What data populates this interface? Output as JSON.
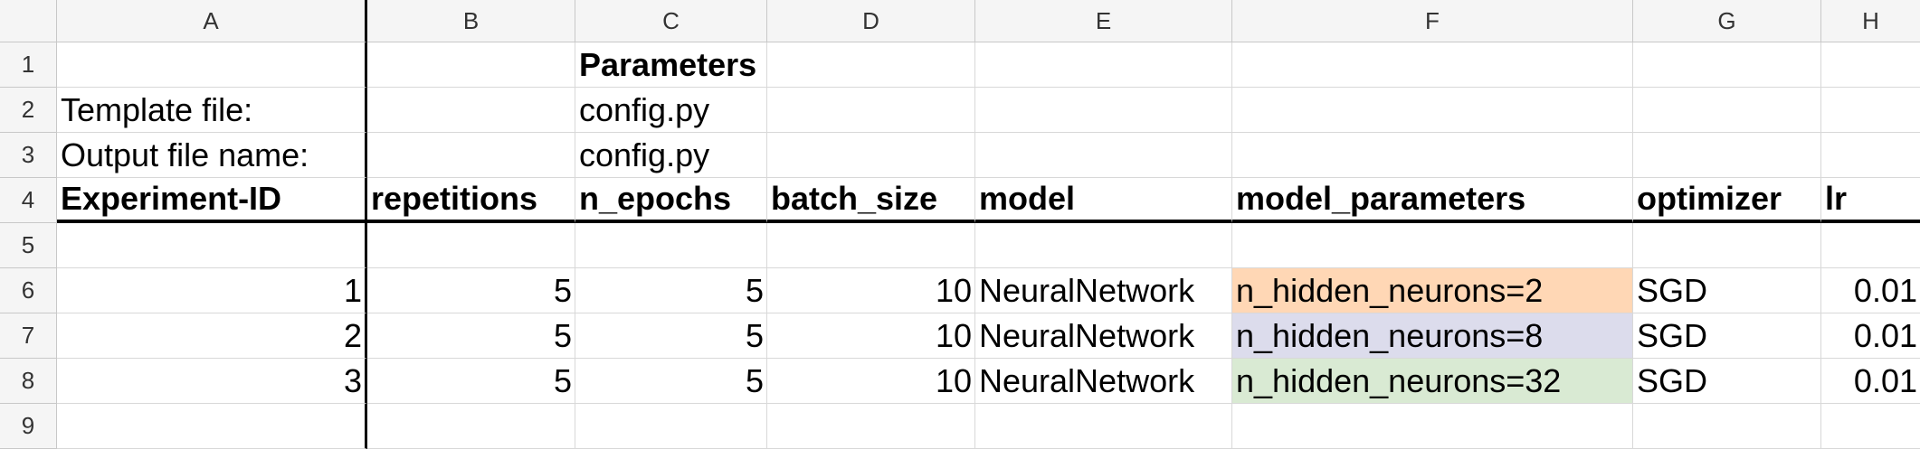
{
  "columns": [
    "A",
    "B",
    "C",
    "D",
    "E",
    "F",
    "G",
    "H"
  ],
  "rows": [
    "1",
    "2",
    "3",
    "4",
    "5",
    "6",
    "7",
    "8",
    "9"
  ],
  "cells": {
    "c1": "Parameters",
    "a2": "Template file:",
    "c2": "config.py",
    "a3": "Output file name:",
    "c3": "config.py",
    "headers": [
      "Experiment-ID",
      "repetitions",
      "n_epochs",
      "batch_size",
      "model",
      "model_parameters",
      "optimizer",
      "lr"
    ],
    "data": [
      [
        "1",
        "5",
        "5",
        "10",
        "NeuralNetwork",
        "n_hidden_neurons=2",
        "SGD",
        "0.01"
      ],
      [
        "2",
        "5",
        "5",
        "10",
        "NeuralNetwork",
        "n_hidden_neurons=8",
        "SGD",
        "0.01"
      ],
      [
        "3",
        "5",
        "5",
        "10",
        "NeuralNetwork",
        "n_hidden_neurons=32",
        "SGD",
        "0.01"
      ]
    ]
  },
  "colors": {
    "model_parameters_row1": "#ffd7b5",
    "model_parameters_row2": "#dcdcec",
    "model_parameters_row3": "#d9ead3"
  }
}
